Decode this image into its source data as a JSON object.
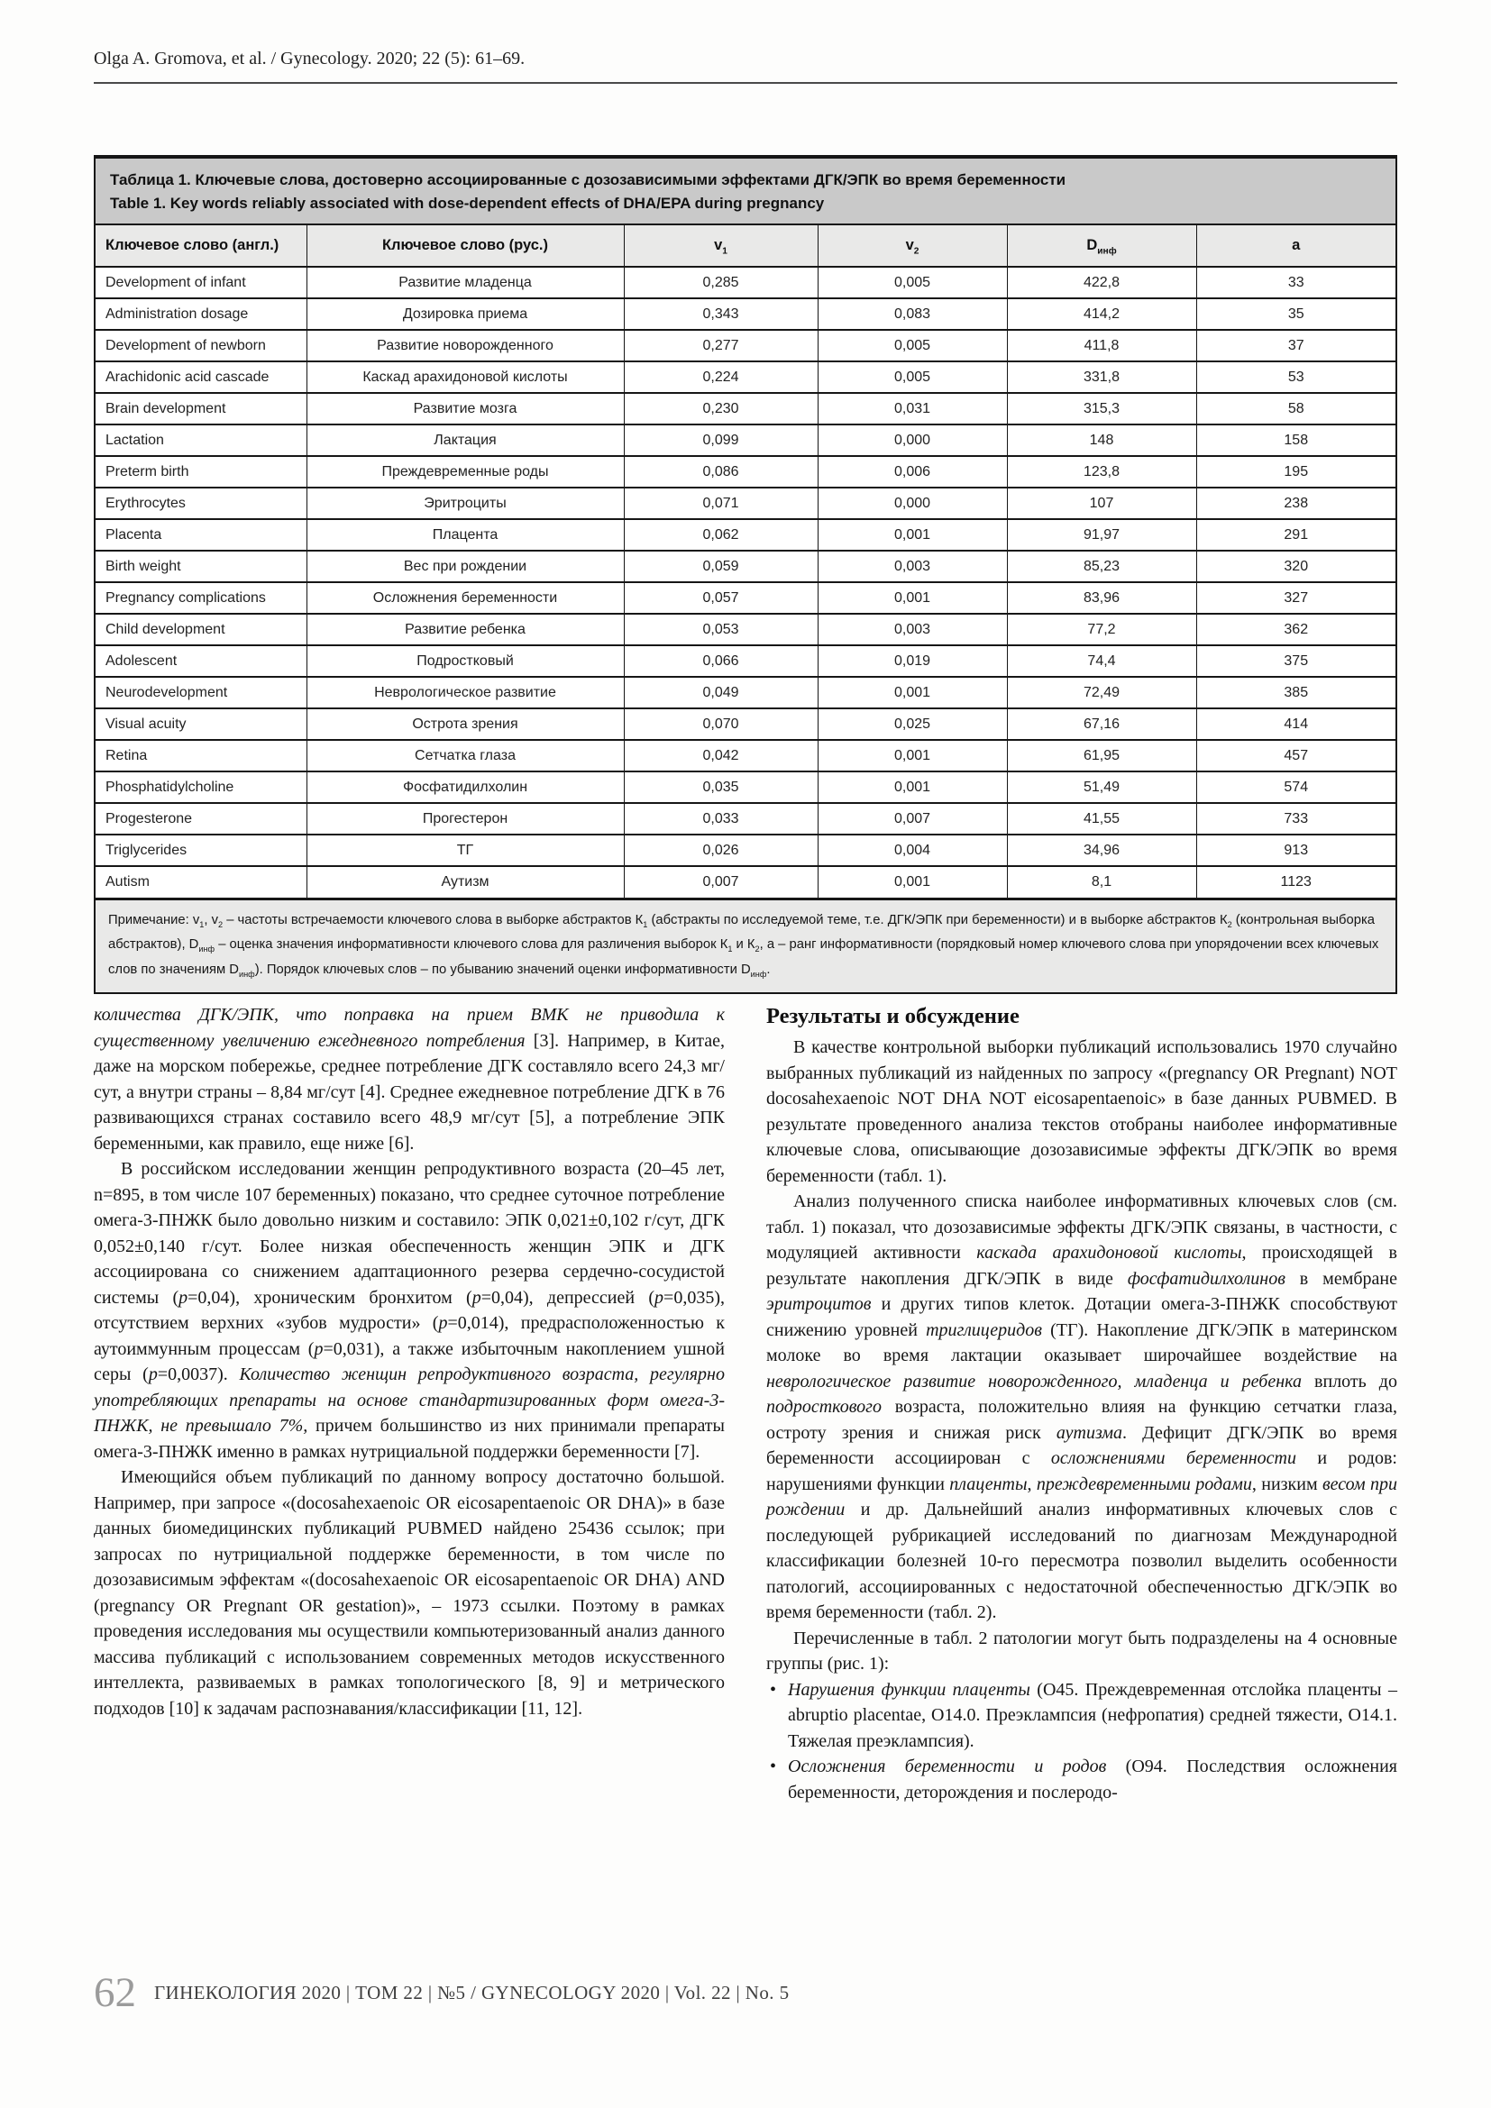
{
  "running_head": "Olga A. Gromova, et al. / Gynecology. 2020; 22 (5): 61–69.",
  "table": {
    "title_ru": "Таблица 1. Ключевые слова, достоверно ассоциированные с дозозависимыми эффектами ДГК/ЭПК во время беременности",
    "title_en": "Table 1. Key words reliably associated with dose-dependent effects of DHA/EPA during pregnancy",
    "columns": [
      {
        "segments": [
          {
            "t": "Ключевое слово (англ.)"
          }
        ]
      },
      {
        "segments": [
          {
            "t": "Ключевое слово (рус.)"
          }
        ]
      },
      {
        "segments": [
          {
            "t": "v"
          },
          {
            "t": "1",
            "sub": true
          }
        ]
      },
      {
        "segments": [
          {
            "t": "v"
          },
          {
            "t": "2",
            "sub": true
          }
        ]
      },
      {
        "segments": [
          {
            "t": "D"
          },
          {
            "t": "инф",
            "sub": true
          }
        ]
      },
      {
        "segments": [
          {
            "t": "a"
          }
        ]
      }
    ],
    "rows": [
      [
        "Development of infant",
        "Развитие младенца",
        "0,285",
        "0,005",
        "422,8",
        "33"
      ],
      [
        "Administration dosage",
        "Дозировка приема",
        "0,343",
        "0,083",
        "414,2",
        "35"
      ],
      [
        "Development of newborn",
        "Развитие новорожденного",
        "0,277",
        "0,005",
        "411,8",
        "37"
      ],
      [
        "Arachidonic acid cascade",
        "Каскад арахидоновой кислоты",
        "0,224",
        "0,005",
        "331,8",
        "53"
      ],
      [
        "Brain development",
        "Развитие мозга",
        "0,230",
        "0,031",
        "315,3",
        "58"
      ],
      [
        "Lactation",
        "Лактация",
        "0,099",
        "0,000",
        "148",
        "158"
      ],
      [
        "Preterm birth",
        "Преждевременные роды",
        "0,086",
        "0,006",
        "123,8",
        "195"
      ],
      [
        "Erythrocytes",
        "Эритроциты",
        "0,071",
        "0,000",
        "107",
        "238"
      ],
      [
        "Placenta",
        "Плацента",
        "0,062",
        "0,001",
        "91,97",
        "291"
      ],
      [
        "Birth weight",
        "Вес при рождении",
        "0,059",
        "0,003",
        "85,23",
        "320"
      ],
      [
        "Pregnancy complications",
        "Осложнения беременности",
        "0,057",
        "0,001",
        "83,96",
        "327"
      ],
      [
        "Child development",
        "Развитие ребенка",
        "0,053",
        "0,003",
        "77,2",
        "362"
      ],
      [
        "Adolescent",
        "Подростковый",
        "0,066",
        "0,019",
        "74,4",
        "375"
      ],
      [
        "Neurodevelopment",
        "Неврологическое развитие",
        "0,049",
        "0,001",
        "72,49",
        "385"
      ],
      [
        "Visual acuity",
        "Острота зрения",
        "0,070",
        "0,025",
        "67,16",
        "414"
      ],
      [
        "Retina",
        "Сетчатка глаза",
        "0,042",
        "0,001",
        "61,95",
        "457"
      ],
      [
        "Phosphatidylcholine",
        "Фосфатидилхолин",
        "0,035",
        "0,001",
        "51,49",
        "574"
      ],
      [
        "Progesterone",
        "Прогестерон",
        "0,033",
        "0,007",
        "41,55",
        "733"
      ],
      [
        "Triglycerides",
        "ТГ",
        "0,026",
        "0,004",
        "34,96",
        "913"
      ],
      [
        "Autism",
        "Аутизм",
        "0,007",
        "0,001",
        "8,1",
        "1123"
      ]
    ],
    "note": {
      "segments": [
        {
          "t": "Примечание: v"
        },
        {
          "t": "1",
          "sub": true
        },
        {
          "t": ", v"
        },
        {
          "t": "2",
          "sub": true
        },
        {
          "t": " – частоты встречаемости ключевого слова в выборке абстрактов К"
        },
        {
          "t": "1",
          "sub": true
        },
        {
          "t": " (абстракты по исследуемой теме, т.е. ДГК/ЭПК при беременности) и в выборке абстрактов К"
        },
        {
          "t": "2",
          "sub": true
        },
        {
          "t": " (контрольная выборка абстрактов), D"
        },
        {
          "t": "инф",
          "sub": true
        },
        {
          "t": " – оценка значения информативности ключевого слова для различения выборок К"
        },
        {
          "t": "1",
          "sub": true
        },
        {
          "t": " и К"
        },
        {
          "t": "2",
          "sub": true
        },
        {
          "t": ", a – ранг информативности (порядковый номер ключевого слова при упорядочении всех ключевых слов по значениям D"
        },
        {
          "t": "инф",
          "sub": true
        },
        {
          "t": "). Порядок ключевых слов – по убыванию значений оценки информативности D"
        },
        {
          "t": "инф",
          "sub": true
        },
        {
          "t": "."
        }
      ]
    }
  },
  "columns": {
    "left": {
      "paragraphs": [
        {
          "indent": false,
          "segments": [
            {
              "t": "количества ДГК/ЭПК, что поправка на прием ВМК не приводила к существенному увеличению ежедневного потребления",
              "i": true
            },
            {
              "t": " [3]. Например, в Китае, даже на морском побережье, среднее потребление ДГК составляло всего 24,3 мг/сут, а внутри страны – 8,84 мг/сут [4]. Среднее ежедневное потребление ДГК в 76 развивающихся странах составило всего 48,9 мг/сут [5], а потребление ЭПК беременными, как правило, еще ниже [6]."
            }
          ]
        },
        {
          "indent": true,
          "segments": [
            {
              "t": "В российском исследовании женщин репродуктивного возраста (20–45 лет, n=895, в том числе 107 беременных) показано, что среднее суточное потребление омега-3-ПНЖК было довольно низким и составило: ЭПК 0,021±0,102 г/сут, ДГК 0,052±0,140 г/сут. Более низкая обеспеченность женщин ЭПК и ДГК ассоциирована со снижением адаптационного резерва сердечно-сосудистой системы ("
            },
            {
              "t": "p",
              "i": true
            },
            {
              "t": "=0,04), хроническим бронхитом ("
            },
            {
              "t": "p",
              "i": true
            },
            {
              "t": "=0,04), депрессией ("
            },
            {
              "t": "p",
              "i": true
            },
            {
              "t": "=0,035), отсутствием верхних «зубов мудрости» ("
            },
            {
              "t": "p",
              "i": true
            },
            {
              "t": "=0,014), предрасположенностью к аутоиммунным процессам ("
            },
            {
              "t": "p",
              "i": true
            },
            {
              "t": "=0,031), а также избыточным накоплением ушной серы ("
            },
            {
              "t": "p",
              "i": true
            },
            {
              "t": "=0,0037). "
            },
            {
              "t": "Количество женщин репродуктивного возраста, регулярно употребляющих препараты на основе стандартизированных форм омега-3-ПНЖК, не превышало 7%,",
              "i": true
            },
            {
              "t": " причем большинство из них принимали препараты омега-3-ПНЖК именно в рамках нутрициальной поддержки беременности [7]."
            }
          ]
        },
        {
          "indent": true,
          "segments": [
            {
              "t": "Имеющийся объем публикаций по данному вопросу достаточно большой. Например, при запросе «(docosahexaenoic OR eicosapentaenoic OR DHA)» в базе данных биомедицинских публикаций PUBMED найдено 25436 ссылок; при запросах по нутрициальной поддержке беременности, в том числе по дозозависимым эффектам «(docosahexaenoic OR eicosapentaenoic OR DHA) AND (pregnancy OR Pregnant OR gestation)», – 1973 ссылки. Поэтому в рамках проведения исследования мы осуществили компьютеризованный анализ данного массива публикаций с использованием современных методов искусственного интеллекта, развиваемых в рамках топологического [8, 9] и метрического подходов [10] к задачам распознавания/классификации [11, 12]."
            }
          ]
        }
      ]
    },
    "right": {
      "heading": "Результаты и обсуждение",
      "paragraphs": [
        {
          "indent": true,
          "segments": [
            {
              "t": "В качестве контрольной выборки публикаций использовались 1970 случайно выбранных публикаций из найденных по запросу «(pregnancy OR Pregnant) NOT docosahexaenoic NOT DHA NOT eicosapentaenoic» в базе данных PUBMED. В результате проведенного анализа текстов отобраны наиболее информативные ключевые слова, описывающие дозозависимые эффекты ДГК/ЭПК во время беременности (табл. 1)."
            }
          ]
        },
        {
          "indent": true,
          "segments": [
            {
              "t": "Анализ полученного списка наиболее информативных ключевых слов (см. табл. 1) показал, что дозозависимые эффекты ДГК/ЭПК связаны, в частности, с модуляцией активности "
            },
            {
              "t": "каскада арахидоновой кислоты",
              "i": true
            },
            {
              "t": ", происходящей в результате накопления ДГК/ЭПК в виде "
            },
            {
              "t": "фосфатидилхолинов",
              "i": true
            },
            {
              "t": " в мембране "
            },
            {
              "t": "эритроцитов",
              "i": true
            },
            {
              "t": " и других типов клеток. Дотации омега-3-ПНЖК способствуют снижению уровней "
            },
            {
              "t": "триглицеридов",
              "i": true
            },
            {
              "t": " (ТГ). Накопление ДГК/ЭПК в материнском молоке во время лактации оказывает широчайшее воздействие на "
            },
            {
              "t": "неврологическое развитие новорожденного, младенца и ребенка",
              "i": true
            },
            {
              "t": " вплоть до "
            },
            {
              "t": "подросткового",
              "i": true
            },
            {
              "t": " возраста, положительно влияя на функцию сетчатки глаза, остроту зрения и снижая риск "
            },
            {
              "t": "аутизма",
              "i": true
            },
            {
              "t": ". Дефицит ДГК/ЭПК во время беременности ассоциирован с "
            },
            {
              "t": "осложнениями беременности",
              "i": true
            },
            {
              "t": " и родов: нарушениями функции "
            },
            {
              "t": "плаценты",
              "i": true
            },
            {
              "t": ", "
            },
            {
              "t": "преждевременными родами",
              "i": true
            },
            {
              "t": ", низким "
            },
            {
              "t": "весом при рождении",
              "i": true
            },
            {
              "t": " и др. Дальнейший анализ информативных ключевых слов с последующей рубрикацией исследований по диагнозам Международной классификации болезней 10-го пересмотра позволил выделить особенности патологий, ассоциированных с недостаточной обеспеченностью ДГК/ЭПК во время беременности (табл. 2)."
            }
          ]
        },
        {
          "indent": true,
          "segments": [
            {
              "t": "Перечисленные в табл. 2 патологии могут быть подразделены на 4 основные группы (рис. 1):"
            }
          ]
        }
      ],
      "bullets": [
        {
          "segments": [
            {
              "t": "Нарушения функции плаценты",
              "i": true
            },
            {
              "t": " (О45. Преждевременная отслойка плаценты –abruptio placentae, О14.0. Преэклампсия (нефропатия) средней тяжести, О14.1. Тяжелая преэклампсия)."
            }
          ]
        },
        {
          "segments": [
            {
              "t": "Осложнения беременности и родов",
              "i": true
            },
            {
              "t": " (О94. Последствия осложнения беременности, деторождения и послеродо-"
            }
          ]
        }
      ]
    }
  },
  "footer": {
    "page_number": "62",
    "journal_line": "ГИНЕКОЛОГИЯ 2020 | ТОМ 22 | №5 / GYNECOLOGY 2020 | Vol. 22 | No. 5"
  }
}
